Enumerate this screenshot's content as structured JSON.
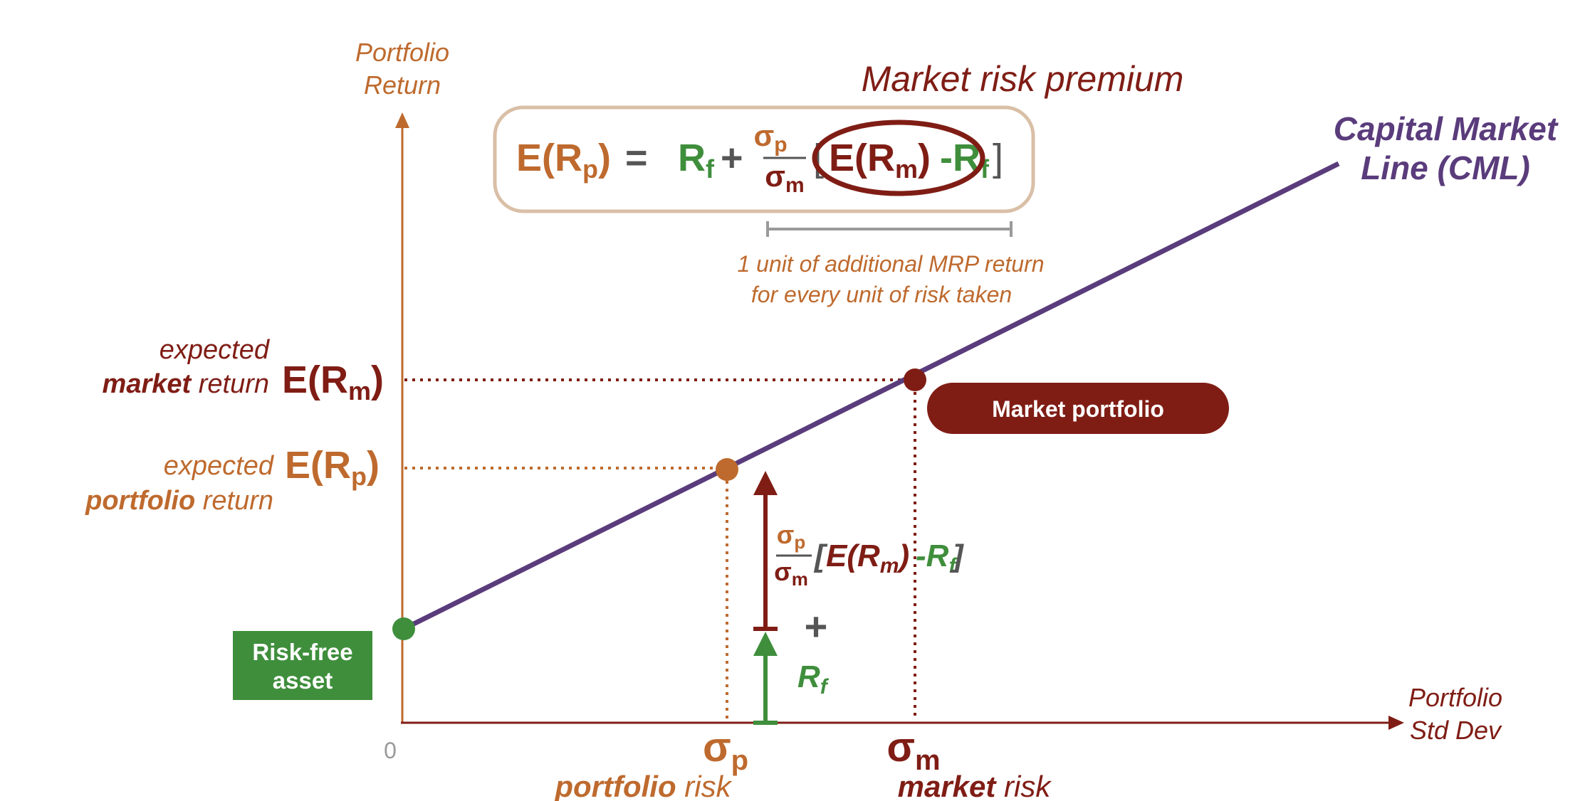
{
  "colors": {
    "orange": "#BE6A2E",
    "darkred": "#7F1D15",
    "green": "#3F8E3C",
    "purple": "#5A3C7C",
    "gray": "#555555",
    "lightgray": "#9A9A9A",
    "tan": "#D9BFA6"
  },
  "axes": {
    "y_label_line1": "Portfolio",
    "y_label_line2": "Return",
    "x_label_line1": "Portfolio",
    "x_label_line2": "Std Dev",
    "origin": "0"
  },
  "formula": {
    "title": "Market risk premium",
    "lhs": "E(R",
    "lhs_sub": "p",
    "lhs_close": ")",
    "equals": "=",
    "rf": "R",
    "rf_sub": "f",
    "plus": "+",
    "sigma": "σ",
    "sigma_p_sub": "p",
    "sigma_m_sub": "m",
    "open_bracket": "[",
    "erm": "E(R",
    "erm_sub": "m",
    "erm_close": ")",
    "minus_rf": "-R",
    "minus_rf_sub": "f",
    "close_bracket": "]",
    "note_line1": "1 unit of additional MRP return",
    "note_line2": "for every unit of risk taken"
  },
  "cml": {
    "label_line1": "Capital Market",
    "label_line2": "Line (CML)"
  },
  "market": {
    "label_italic": "expected",
    "label_bold": "market",
    "label_rest": " return",
    "symbol": "E(R",
    "symbol_sub": "m",
    "symbol_close": ")",
    "pill": "Market portfolio",
    "sigma": "σ",
    "sigma_sub": "m",
    "risk_bold": "market",
    "risk_rest": " risk"
  },
  "portfolio": {
    "label_italic": "expected",
    "label_bold": "portfolio",
    "label_rest": " return",
    "symbol": "E(R",
    "symbol_sub": "p",
    "symbol_close": ")",
    "sigma": "σ",
    "sigma_sub": "p",
    "risk_bold": "portfolio",
    "risk_rest": " risk"
  },
  "riskfree": {
    "line1": "Risk-free",
    "line2": "asset"
  },
  "decomposition": {
    "sigma": "σ",
    "sigma_p_sub": "p",
    "sigma_m_sub": "m",
    "open_bracket": "[",
    "erm": "E(R",
    "erm_sub": "m",
    "erm_close": ")",
    "minus_rf": "-R",
    "minus_rf_sub": "f",
    "close_bracket": "]",
    "plus": "+",
    "rf": "R",
    "rf_sub": "f"
  }
}
